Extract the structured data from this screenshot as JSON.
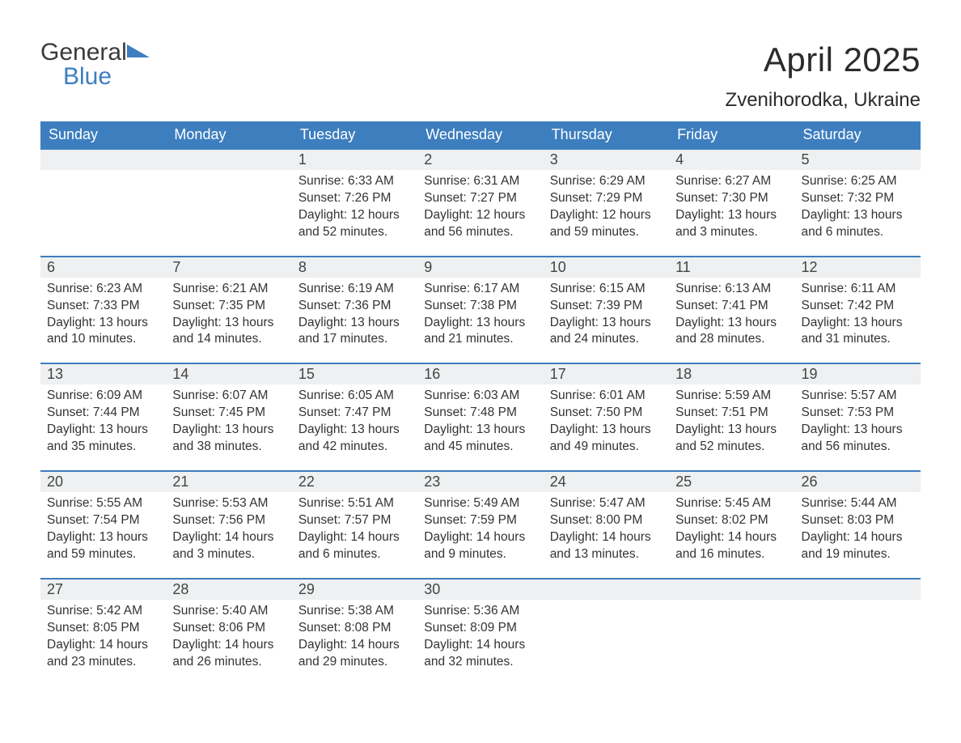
{
  "brand": {
    "line1": "General",
    "line2": "Blue",
    "flag_color": "#3d7ebf"
  },
  "title": "April 2025",
  "location": "Zvenihorodka, Ukraine",
  "theme": {
    "header_bg": "#3d7ebf",
    "header_fg": "#ffffff",
    "daynum_bg": "#eef0f1",
    "border_top": "#3d7ebf",
    "background": "#ffffff",
    "text_color": "#333333",
    "title_fontsize": 42,
    "location_fontsize": 24,
    "header_fontsize": 18,
    "cell_fontsize": 15.5
  },
  "day_headers": [
    "Sunday",
    "Monday",
    "Tuesday",
    "Wednesday",
    "Thursday",
    "Friday",
    "Saturday"
  ],
  "weeks": [
    [
      null,
      null,
      {
        "n": "1",
        "sunrise": "6:33 AM",
        "sunset": "7:26 PM",
        "daylight": "12 hours and 52 minutes."
      },
      {
        "n": "2",
        "sunrise": "6:31 AM",
        "sunset": "7:27 PM",
        "daylight": "12 hours and 56 minutes."
      },
      {
        "n": "3",
        "sunrise": "6:29 AM",
        "sunset": "7:29 PM",
        "daylight": "12 hours and 59 minutes."
      },
      {
        "n": "4",
        "sunrise": "6:27 AM",
        "sunset": "7:30 PM",
        "daylight": "13 hours and 3 minutes."
      },
      {
        "n": "5",
        "sunrise": "6:25 AM",
        "sunset": "7:32 PM",
        "daylight": "13 hours and 6 minutes."
      }
    ],
    [
      {
        "n": "6",
        "sunrise": "6:23 AM",
        "sunset": "7:33 PM",
        "daylight": "13 hours and 10 minutes."
      },
      {
        "n": "7",
        "sunrise": "6:21 AM",
        "sunset": "7:35 PM",
        "daylight": "13 hours and 14 minutes."
      },
      {
        "n": "8",
        "sunrise": "6:19 AM",
        "sunset": "7:36 PM",
        "daylight": "13 hours and 17 minutes."
      },
      {
        "n": "9",
        "sunrise": "6:17 AM",
        "sunset": "7:38 PM",
        "daylight": "13 hours and 21 minutes."
      },
      {
        "n": "10",
        "sunrise": "6:15 AM",
        "sunset": "7:39 PM",
        "daylight": "13 hours and 24 minutes."
      },
      {
        "n": "11",
        "sunrise": "6:13 AM",
        "sunset": "7:41 PM",
        "daylight": "13 hours and 28 minutes."
      },
      {
        "n": "12",
        "sunrise": "6:11 AM",
        "sunset": "7:42 PM",
        "daylight": "13 hours and 31 minutes."
      }
    ],
    [
      {
        "n": "13",
        "sunrise": "6:09 AM",
        "sunset": "7:44 PM",
        "daylight": "13 hours and 35 minutes."
      },
      {
        "n": "14",
        "sunrise": "6:07 AM",
        "sunset": "7:45 PM",
        "daylight": "13 hours and 38 minutes."
      },
      {
        "n": "15",
        "sunrise": "6:05 AM",
        "sunset": "7:47 PM",
        "daylight": "13 hours and 42 minutes."
      },
      {
        "n": "16",
        "sunrise": "6:03 AM",
        "sunset": "7:48 PM",
        "daylight": "13 hours and 45 minutes."
      },
      {
        "n": "17",
        "sunrise": "6:01 AM",
        "sunset": "7:50 PM",
        "daylight": "13 hours and 49 minutes."
      },
      {
        "n": "18",
        "sunrise": "5:59 AM",
        "sunset": "7:51 PM",
        "daylight": "13 hours and 52 minutes."
      },
      {
        "n": "19",
        "sunrise": "5:57 AM",
        "sunset": "7:53 PM",
        "daylight": "13 hours and 56 minutes."
      }
    ],
    [
      {
        "n": "20",
        "sunrise": "5:55 AM",
        "sunset": "7:54 PM",
        "daylight": "13 hours and 59 minutes."
      },
      {
        "n": "21",
        "sunrise": "5:53 AM",
        "sunset": "7:56 PM",
        "daylight": "14 hours and 3 minutes."
      },
      {
        "n": "22",
        "sunrise": "5:51 AM",
        "sunset": "7:57 PM",
        "daylight": "14 hours and 6 minutes."
      },
      {
        "n": "23",
        "sunrise": "5:49 AM",
        "sunset": "7:59 PM",
        "daylight": "14 hours and 9 minutes."
      },
      {
        "n": "24",
        "sunrise": "5:47 AM",
        "sunset": "8:00 PM",
        "daylight": "14 hours and 13 minutes."
      },
      {
        "n": "25",
        "sunrise": "5:45 AM",
        "sunset": "8:02 PM",
        "daylight": "14 hours and 16 minutes."
      },
      {
        "n": "26",
        "sunrise": "5:44 AM",
        "sunset": "8:03 PM",
        "daylight": "14 hours and 19 minutes."
      }
    ],
    [
      {
        "n": "27",
        "sunrise": "5:42 AM",
        "sunset": "8:05 PM",
        "daylight": "14 hours and 23 minutes."
      },
      {
        "n": "28",
        "sunrise": "5:40 AM",
        "sunset": "8:06 PM",
        "daylight": "14 hours and 26 minutes."
      },
      {
        "n": "29",
        "sunrise": "5:38 AM",
        "sunset": "8:08 PM",
        "daylight": "14 hours and 29 minutes."
      },
      {
        "n": "30",
        "sunrise": "5:36 AM",
        "sunset": "8:09 PM",
        "daylight": "14 hours and 32 minutes."
      },
      null,
      null,
      null
    ]
  ],
  "labels": {
    "sunrise": "Sunrise: ",
    "sunset": "Sunset: ",
    "daylight": "Daylight: "
  }
}
